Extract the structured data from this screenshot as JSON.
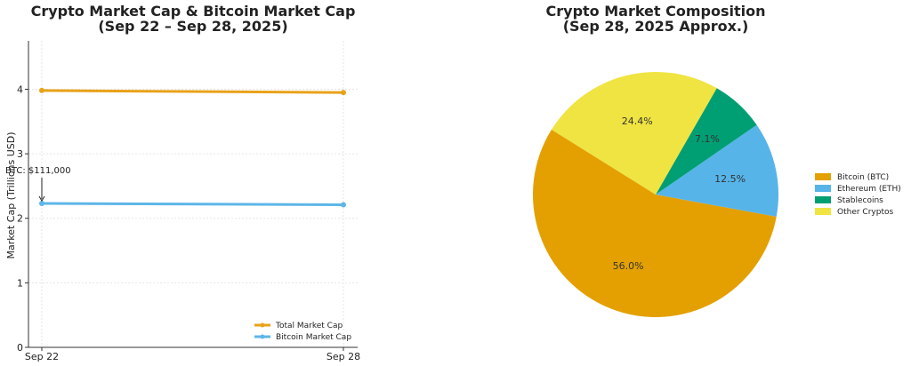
{
  "chart_data": [
    {
      "type": "line",
      "title": "Crypto Market Cap & Bitcoin Market Cap",
      "subtitle": "(Sep 22 – Sep 28, 2025)",
      "xlabel": "",
      "ylabel": "Market Cap (Trillions USD)",
      "categories": [
        "Sep 22",
        "Sep 28"
      ],
      "ylim": [
        0,
        4.75
      ],
      "yticks": [
        0,
        1,
        2,
        3,
        4
      ],
      "grid": true,
      "legend_position": "bottom-right",
      "series": [
        {
          "name": "Total Market Cap",
          "values": [
            3.98,
            3.95
          ],
          "color": "#e8a21a"
        },
        {
          "name": "Bitcoin Market Cap",
          "values": [
            2.23,
            2.21
          ],
          "color": "#5db6e8"
        }
      ],
      "annotations": [
        {
          "text": "BTC: $111,000",
          "x": "Sep 22",
          "y": 2.23
        }
      ]
    },
    {
      "type": "pie",
      "title": "Crypto Market Composition",
      "subtitle": "(Sep 28, 2025 Approx.)",
      "legend_position": "right",
      "slices": [
        {
          "name": "Bitcoin (BTC)",
          "value": 56.0,
          "label": "56.0%",
          "color": "#e3a000"
        },
        {
          "name": "Ethereum (ETH)",
          "value": 12.5,
          "label": "12.5%",
          "color": "#56b4e9"
        },
        {
          "name": "Stablecoins",
          "value": 7.1,
          "label": "7.1%",
          "color": "#009e73"
        },
        {
          "name": "Other Cryptos",
          "value": 24.4,
          "label": "24.4%",
          "color": "#f0e442"
        }
      ]
    }
  ]
}
